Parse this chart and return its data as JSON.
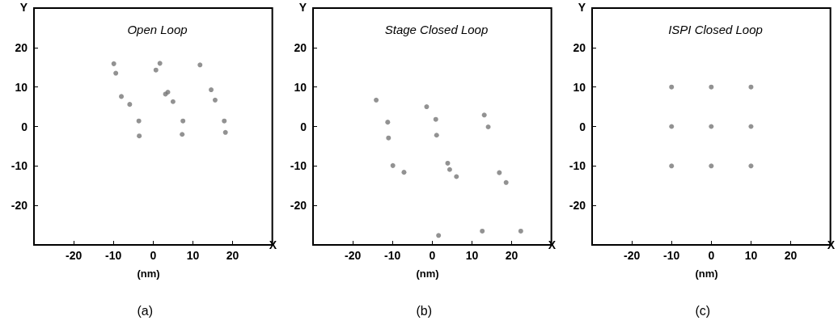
{
  "chart_data": [
    {
      "type": "scatter",
      "title": "Open Loop",
      "xlabel": "X",
      "ylabel": "Y",
      "annotations": [
        "(nm)",
        "(a)"
      ],
      "marker": "circle",
      "xlim": [
        -30,
        30
      ],
      "ylim": [
        -30,
        30
      ],
      "xticks": [
        -20,
        -10,
        0,
        10,
        20
      ],
      "yticks": [
        -20,
        -10,
        0,
        10,
        20
      ],
      "series": [
        {
          "color": "#777777",
          "x": [
            -9.9,
            -9.4,
            -8.0,
            -5.9,
            -3.6,
            -3.5,
            0.7,
            1.7,
            3.1,
            3.7,
            5.0,
            7.5,
            7.3,
            11.8,
            14.6,
            15.6,
            17.9,
            18.2
          ],
          "values": [
            15.9,
            13.5,
            7.6,
            5.6,
            1.4,
            -2.4,
            14.3,
            16.0,
            8.2,
            8.7,
            6.3,
            1.4,
            -2.0,
            15.6,
            9.3,
            6.7,
            1.4,
            -1.5
          ]
        }
      ]
    },
    {
      "type": "scatter",
      "title": "Stage Closed Loop",
      "xlabel": "X",
      "ylabel": "Y",
      "annotations": [
        "(nm)",
        "(b)"
      ],
      "marker": "circle",
      "xlim": [
        -30,
        30
      ],
      "ylim": [
        -30,
        30
      ],
      "xticks": [
        -20,
        -10,
        0,
        10,
        20
      ],
      "yticks": [
        -20,
        -10,
        0,
        10,
        20
      ],
      "series": [
        {
          "color": "#777777",
          "x": [
            -14.1,
            -11.2,
            -11.0,
            -9.9,
            -7.1,
            -1.4,
            0.9,
            1.1,
            3.9,
            4.4,
            6.1,
            13.1,
            14.1,
            16.9,
            18.6,
            1.6,
            12.6,
            22.3
          ],
          "values": [
            6.7,
            1.1,
            -2.9,
            -9.9,
            -11.6,
            5.0,
            1.8,
            -2.2,
            -9.3,
            -10.9,
            -12.7,
            2.9,
            -0.1,
            -11.7,
            -14.2,
            -27.6,
            -26.5,
            -26.5
          ]
        }
      ]
    },
    {
      "type": "scatter",
      "title": "ISPI Closed Loop",
      "xlabel": "X",
      "ylabel": "Y",
      "annotations": [
        "(nm)",
        "(c)"
      ],
      "marker": "circle",
      "xlim": [
        -30,
        30
      ],
      "ylim": [
        -30,
        30
      ],
      "xticks": [
        -20,
        -10,
        0,
        10,
        20
      ],
      "yticks": [
        -20,
        -10,
        0,
        10,
        20
      ],
      "series": [
        {
          "color": "#777777",
          "x": [
            -10,
            0,
            10,
            -10,
            0,
            10,
            -10,
            0,
            10
          ],
          "values": [
            10,
            10,
            10,
            0,
            0,
            0,
            -10,
            -10,
            -10
          ]
        }
      ]
    }
  ]
}
